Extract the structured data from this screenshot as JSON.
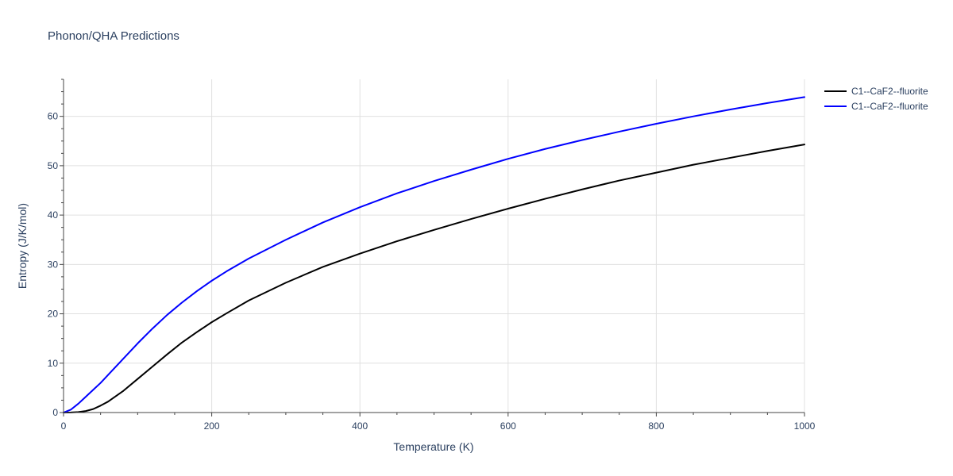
{
  "chart_data": {
    "type": "line",
    "title": "Phonon/QHA Predictions",
    "xlabel": "Temperature (K)",
    "ylabel": "Entropy (J/K/mol)",
    "xlim": [
      0,
      1000
    ],
    "ylim": [
      0,
      67.5
    ],
    "xticks": [
      0,
      200,
      400,
      600,
      800,
      1000
    ],
    "yticks": [
      0,
      10,
      20,
      30,
      40,
      50,
      60
    ],
    "grid": true,
    "legend_position": "top-right",
    "series": [
      {
        "name": "C1--CaF2--fluorite",
        "color": "#000000",
        "x": [
          0,
          10,
          20,
          30,
          40,
          50,
          60,
          80,
          100,
          120,
          140,
          160,
          180,
          200,
          220,
          250,
          300,
          350,
          400,
          450,
          500,
          550,
          600,
          650,
          700,
          750,
          800,
          850,
          900,
          950,
          1000
        ],
        "y": [
          0,
          0.02,
          0.1,
          0.3,
          0.7,
          1.4,
          2.2,
          4.3,
          6.8,
          9.3,
          11.8,
          14.2,
          16.3,
          18.3,
          20.1,
          22.7,
          26.3,
          29.5,
          32.2,
          34.7,
          37.0,
          39.2,
          41.3,
          43.3,
          45.2,
          47.0,
          48.6,
          50.2,
          51.6,
          53.0,
          54.3
        ]
      },
      {
        "name": "C1--CaF2--fluorite",
        "color": "#0000ff",
        "x": [
          0,
          10,
          20,
          30,
          40,
          50,
          60,
          80,
          100,
          120,
          140,
          160,
          180,
          200,
          220,
          250,
          300,
          350,
          400,
          450,
          500,
          550,
          600,
          650,
          700,
          750,
          800,
          850,
          900,
          950,
          1000
        ],
        "y": [
          0,
          0.6,
          1.8,
          3.2,
          4.6,
          6.0,
          7.6,
          10.8,
          14.0,
          17.0,
          19.8,
          22.3,
          24.6,
          26.7,
          28.6,
          31.2,
          35.0,
          38.5,
          41.6,
          44.4,
          46.9,
          49.2,
          51.4,
          53.4,
          55.2,
          56.9,
          58.5,
          60.0,
          61.4,
          62.7,
          63.9
        ]
      }
    ]
  }
}
